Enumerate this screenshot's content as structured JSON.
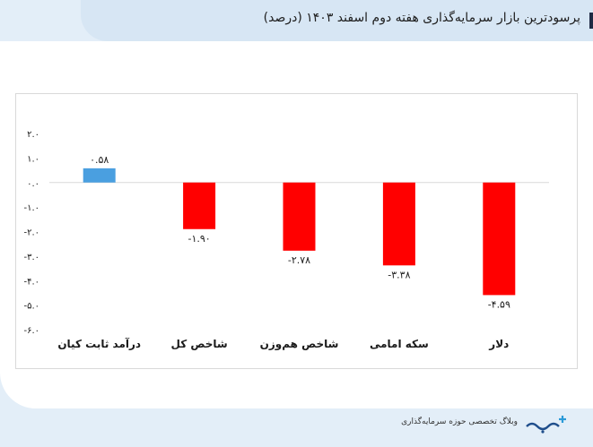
{
  "header": {
    "title": "پرسودترین بازار سرمایه‌گذاری هفته دوم اسفند ۱۴۰۳ (درصد)"
  },
  "footer": {
    "tagline": "وبلاگ تخصصی حوزه سرمایه‌گذاری",
    "logo": "سرمایه"
  },
  "chart_data": {
    "type": "bar",
    "categories": [
      "درآمد ثابت کیان",
      "شاخص کل",
      "شاخص هم‌وزن",
      "سکه امامی",
      "دلار"
    ],
    "values": [
      0.58,
      -1.9,
      -2.78,
      -3.38,
      -4.59
    ],
    "data_labels": [
      "۰.۵۸",
      "-۱.۹۰",
      "-۲.۷۸",
      "-۳.۳۸",
      "-۴.۵۹"
    ],
    "y_ticks": [
      2,
      1,
      0,
      -1,
      -2,
      -3,
      -4,
      -5,
      -6
    ],
    "y_tick_labels": [
      "۲.۰",
      "۱.۰",
      "۰.۰",
      "-۱.۰",
      "-۲.۰",
      "-۳.۰",
      "-۴.۰",
      "-۵.۰",
      "-۶.۰"
    ],
    "ylim": [
      -6,
      2
    ],
    "grid": false,
    "colors": {
      "positive": "#4a9fe0",
      "negative": "#ff0000",
      "axis": "#d9d9d9",
      "text": "#1a1a1a"
    }
  }
}
